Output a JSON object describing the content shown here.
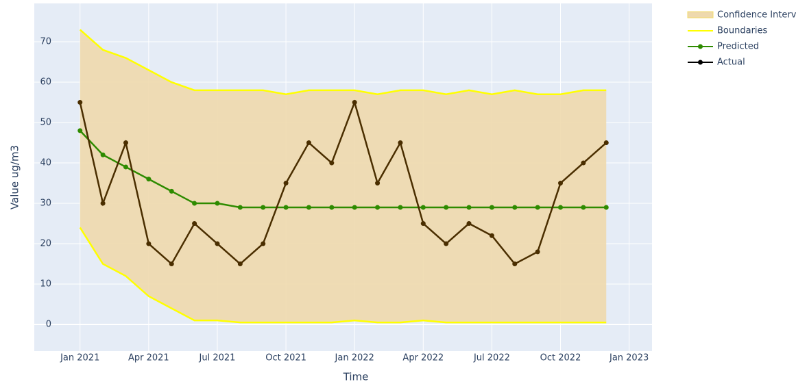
{
  "chart_data": {
    "type": "line",
    "x_label": "Time",
    "y_label": "Value ug/m3",
    "x": [
      "2021-01",
      "2021-02",
      "2021-03",
      "2021-04",
      "2021-05",
      "2021-06",
      "2021-07",
      "2021-08",
      "2021-09",
      "2021-10",
      "2021-11",
      "2021-12",
      "2022-01",
      "2022-02",
      "2022-03",
      "2022-04",
      "2022-05",
      "2022-06",
      "2022-07",
      "2022-08",
      "2022-09",
      "2022-10",
      "2022-11",
      "2022-12"
    ],
    "interval": {
      "name": "Confidence Interval",
      "color": "#eed9ad",
      "boundary_name": "Boundaries",
      "boundary_color": "#ffff00",
      "upper": [
        73,
        68,
        66,
        63,
        60,
        58,
        58,
        58,
        58,
        57,
        58,
        58,
        58,
        57,
        58,
        58,
        57,
        58,
        57,
        58,
        57,
        57,
        58,
        58
      ],
      "lower": [
        24,
        15,
        12,
        7,
        4,
        1,
        1,
        0.5,
        0.5,
        0.5,
        0.5,
        0.5,
        1,
        0.5,
        0.5,
        1,
        0.5,
        0.5,
        0.5,
        0.5,
        0.5,
        0.5,
        0.5,
        0.5
      ]
    },
    "series": [
      {
        "name": "Predicted",
        "color": "#2e8b00",
        "values": [
          48,
          42,
          39,
          36,
          33,
          30,
          30,
          29,
          29,
          29,
          29,
          29,
          29,
          29,
          29,
          29,
          29,
          29,
          29,
          29,
          29,
          29,
          29,
          29
        ]
      },
      {
        "name": "Actual",
        "color": "#000000",
        "values": [
          55,
          30,
          45,
          20,
          15,
          25,
          20,
          15,
          20,
          35,
          45,
          40,
          55,
          35,
          45,
          25,
          20,
          25,
          22,
          15,
          18,
          35,
          40,
          45
        ]
      }
    ],
    "xlim": [
      "2020-11",
      "2023-02"
    ],
    "xticks": [
      {
        "value": "2021-01",
        "label": "Jan 2021"
      },
      {
        "value": "2021-04",
        "label": "Apr 2021"
      },
      {
        "value": "2021-07",
        "label": "Jul 2021"
      },
      {
        "value": "2021-10",
        "label": "Oct 2021"
      },
      {
        "value": "2022-01",
        "label": "Jan 2022"
      },
      {
        "value": "2022-04",
        "label": "Apr 2022"
      },
      {
        "value": "2022-07",
        "label": "Jul 2022"
      },
      {
        "value": "2022-10",
        "label": "Oct 2022"
      },
      {
        "value": "2023-01",
        "label": "Jan 2023"
      }
    ],
    "ylim": [
      -6.6,
      79.5
    ],
    "yticks": [
      0,
      10,
      20,
      30,
      40,
      50,
      60,
      70
    ],
    "grid": true
  }
}
